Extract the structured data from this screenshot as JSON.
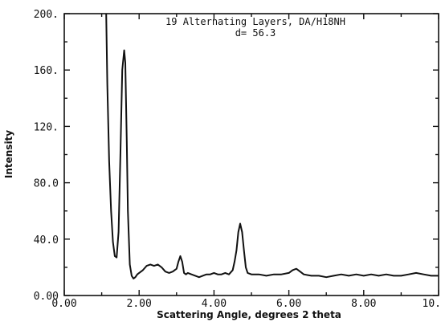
{
  "chart_data": {
    "type": "line",
    "title": "",
    "annotation_lines": [
      "19 Alternating Layers, DA/H18NH",
      "d= 56.3"
    ],
    "xlabel": "Scattering Angle, degrees 2 theta",
    "ylabel": "Intensity",
    "xlim": [
      0,
      10
    ],
    "ylim": [
      0,
      200
    ],
    "x_ticks": [
      0,
      2,
      4,
      6,
      8,
      10
    ],
    "x_tick_labels": [
      "0.00",
      "2.00",
      "4.00",
      "6.00",
      "8.00",
      "10."
    ],
    "y_ticks": [
      0,
      40,
      80,
      120,
      160,
      200
    ],
    "y_tick_labels": [
      "0.00",
      "40.0",
      "80.0",
      "120.",
      "160.",
      "200."
    ],
    "grid": false,
    "series": [
      {
        "x": [
          1.12,
          1.15,
          1.2,
          1.25,
          1.3,
          1.35,
          1.4,
          1.45,
          1.5,
          1.55,
          1.6,
          1.63,
          1.67,
          1.7,
          1.75,
          1.8,
          1.85,
          1.9,
          1.95,
          2.0,
          2.1,
          2.2,
          2.3,
          2.4,
          2.5,
          2.6,
          2.7,
          2.8,
          2.9,
          3.0,
          3.05,
          3.1,
          3.15,
          3.2,
          3.25,
          3.3,
          3.4,
          3.5,
          3.6,
          3.7,
          3.8,
          3.9,
          4.0,
          4.1,
          4.2,
          4.3,
          4.4,
          4.5,
          4.55,
          4.6,
          4.65,
          4.7,
          4.75,
          4.8,
          4.85,
          4.9,
          5.0,
          5.2,
          5.4,
          5.6,
          5.8,
          6.0,
          6.1,
          6.2,
          6.3,
          6.4,
          6.6,
          6.8,
          7.0,
          7.2,
          7.4,
          7.6,
          7.8,
          8.0,
          8.2,
          8.4,
          8.6,
          8.8,
          9.0,
          9.2,
          9.4,
          9.6,
          9.8,
          10.0
        ],
        "y": [
          200,
          150,
          95,
          60,
          38,
          28,
          27,
          45,
          100,
          160,
          174,
          165,
          110,
          60,
          22,
          14,
          12,
          13,
          15,
          16,
          18,
          21,
          22,
          21,
          22,
          20,
          17,
          16,
          17,
          19,
          24,
          28,
          24,
          16,
          15,
          16,
          15,
          14,
          13,
          14,
          15,
          15,
          16,
          15,
          15,
          16,
          15,
          18,
          24,
          32,
          45,
          51,
          45,
          32,
          20,
          16,
          15,
          15,
          14,
          15,
          15,
          16,
          18,
          19,
          17,
          15,
          14,
          14,
          13,
          14,
          15,
          14,
          15,
          14,
          15,
          14,
          15,
          14,
          14,
          15,
          16,
          15,
          14,
          14
        ]
      }
    ]
  }
}
